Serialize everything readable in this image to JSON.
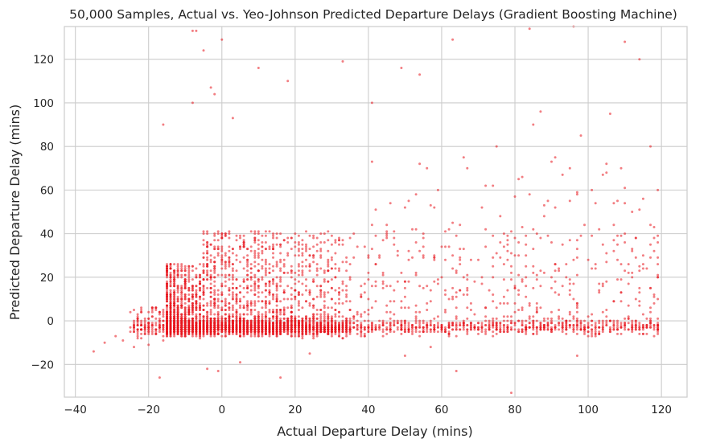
{
  "chart_data": {
    "type": "scatter",
    "title": "50,000 Samples, Actual vs. Yeo-Johnson Predicted Departure Delays (Gradient Boosting Machine)",
    "xlabel": "Actual Departure Delay (mins)",
    "ylabel": "Predicted Departure Delay (mins)",
    "xlim": [
      -43,
      127
    ],
    "ylim": [
      -35,
      135
    ],
    "xticks": [
      -40,
      -20,
      0,
      20,
      40,
      60,
      80,
      100,
      120
    ],
    "yticks": [
      -20,
      0,
      20,
      40,
      60,
      80,
      100,
      120
    ],
    "grid": true,
    "point_color": "#e8141c",
    "point_opacity": 0.55,
    "sample_count": 50000,
    "points_sample": [
      [
        -35,
        -14
      ],
      [
        -32,
        -10
      ],
      [
        -29,
        -7
      ],
      [
        -27,
        -9
      ],
      [
        -25,
        -5
      ],
      [
        -24,
        -12
      ],
      [
        -22,
        -8
      ],
      [
        -21,
        -4
      ],
      [
        -20,
        -11
      ],
      [
        -19,
        -3
      ],
      [
        -18,
        -6
      ],
      [
        -17,
        -2
      ],
      [
        -16,
        -9
      ],
      [
        -15,
        1
      ],
      [
        -14,
        -7
      ],
      [
        -13,
        -4
      ],
      [
        -12,
        3
      ],
      [
        -11,
        -1
      ],
      [
        -10,
        6
      ],
      [
        -9,
        -5
      ],
      [
        -8,
        10
      ],
      [
        -7,
        2
      ],
      [
        -6,
        18
      ],
      [
        -5,
        -3
      ],
      [
        -4,
        25
      ],
      [
        -3,
        8
      ],
      [
        -2,
        33
      ],
      [
        -1,
        12
      ],
      [
        0,
        40
      ],
      [
        1,
        5
      ],
      [
        2,
        15
      ],
      [
        3,
        -2
      ],
      [
        4,
        28
      ],
      [
        5,
        9
      ],
      [
        6,
        36
      ],
      [
        7,
        0
      ],
      [
        8,
        22
      ],
      [
        9,
        -4
      ],
      [
        10,
        30
      ],
      [
        11,
        6
      ],
      [
        12,
        14
      ],
      [
        13,
        -3
      ],
      [
        14,
        35
      ],
      [
        15,
        3
      ],
      [
        16,
        24
      ],
      [
        17,
        -1
      ],
      [
        18,
        38
      ],
      [
        19,
        10
      ],
      [
        20,
        19
      ],
      [
        21,
        -5
      ],
      [
        22,
        27
      ],
      [
        23,
        2
      ],
      [
        24,
        33
      ],
      [
        25,
        -2
      ],
      [
        26,
        16
      ],
      [
        27,
        36
      ],
      [
        28,
        4
      ],
      [
        29,
        23
      ],
      [
        30,
        -3
      ],
      [
        31,
        31
      ],
      [
        32,
        8
      ],
      [
        33,
        35
      ],
      [
        34,
        -1
      ],
      [
        35,
        20
      ],
      [
        36,
        29
      ],
      [
        37,
        -4
      ],
      [
        38,
        12
      ],
      [
        39,
        34
      ],
      [
        40,
        -2
      ],
      [
        41,
        6
      ],
      [
        42,
        26
      ],
      [
        43,
        -3
      ],
      [
        44,
        18
      ],
      [
        45,
        38
      ],
      [
        46,
        -1
      ],
      [
        47,
        9
      ],
      [
        48,
        30
      ],
      [
        49,
        -4
      ],
      [
        50,
        15
      ],
      [
        51,
        55
      ],
      [
        52,
        -2
      ],
      [
        53,
        22
      ],
      [
        54,
        -3
      ],
      [
        55,
        40
      ],
      [
        56,
        5
      ],
      [
        57,
        -1
      ],
      [
        58,
        28
      ],
      [
        59,
        60
      ],
      [
        60,
        -3
      ],
      [
        61,
        12
      ],
      [
        62,
        -2
      ],
      [
        63,
        45
      ],
      [
        64,
        2
      ],
      [
        65,
        -4
      ],
      [
        66,
        33
      ],
      [
        67,
        70
      ],
      [
        68,
        -1
      ],
      [
        69,
        18
      ],
      [
        70,
        -3
      ],
      [
        71,
        52
      ],
      [
        72,
        6
      ],
      [
        73,
        -2
      ],
      [
        74,
        25
      ],
      [
        75,
        80
      ],
      [
        76,
        -4
      ],
      [
        77,
        40
      ],
      [
        78,
        0
      ],
      [
        79,
        -33
      ],
      [
        80,
        15
      ],
      [
        81,
        65
      ],
      [
        82,
        -2
      ],
      [
        83,
        30
      ],
      [
        84,
        -3
      ],
      [
        85,
        90
      ],
      [
        86,
        8
      ],
      [
        87,
        -1
      ],
      [
        88,
        48
      ],
      [
        89,
        -3
      ],
      [
        90,
        20
      ],
      [
        91,
        75
      ],
      [
        92,
        -2
      ],
      [
        93,
        35
      ],
      [
        94,
        -4
      ],
      [
        95,
        55
      ],
      [
        96,
        10
      ],
      [
        97,
        -2
      ],
      [
        98,
        85
      ],
      [
        99,
        -3
      ],
      [
        100,
        28
      ],
      [
        101,
        60
      ],
      [
        102,
        -1
      ],
      [
        103,
        42
      ],
      [
        104,
        -3
      ],
      [
        105,
        18
      ],
      [
        106,
        95
      ],
      [
        107,
        -2
      ],
      [
        108,
        35
      ],
      [
        109,
        70
      ],
      [
        110,
        -4
      ],
      [
        111,
        22
      ],
      [
        112,
        50
      ],
      [
        113,
        -2
      ],
      [
        114,
        120
      ],
      [
        115,
        30
      ],
      [
        116,
        -3
      ],
      [
        117,
        80
      ],
      [
        118,
        12
      ],
      [
        119,
        60
      ],
      [
        119,
        -2
      ],
      [
        119,
        20
      ],
      [
        -8,
        133
      ],
      [
        -7,
        133
      ],
      [
        0,
        129
      ],
      [
        -5,
        124
      ],
      [
        -3,
        107
      ],
      [
        -2,
        104
      ],
      [
        33,
        119
      ],
      [
        63,
        129
      ],
      [
        84,
        134
      ],
      [
        96,
        135
      ],
      [
        110,
        128
      ],
      [
        10,
        116
      ],
      [
        18,
        110
      ],
      [
        49,
        116
      ],
      [
        54,
        113
      ],
      [
        -16,
        90
      ],
      [
        -8,
        100
      ],
      [
        3,
        93
      ],
      [
        41,
        100
      ],
      [
        87,
        96
      ],
      [
        -1,
        -23
      ],
      [
        5,
        -19
      ],
      [
        64,
        -23
      ],
      [
        97,
        -16
      ],
      [
        -17,
        -26
      ],
      [
        16,
        -26
      ],
      [
        50,
        -16
      ],
      [
        -4,
        -22
      ],
      [
        24,
        -15
      ],
      [
        57,
        -12
      ]
    ]
  }
}
